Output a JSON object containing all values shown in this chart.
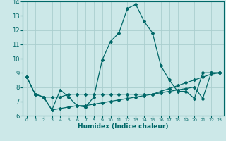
{
  "xlabel": "Humidex (Indice chaleur)",
  "xlim": [
    -0.5,
    23.5
  ],
  "ylim": [
    6,
    14
  ],
  "yticks": [
    6,
    7,
    8,
    9,
    10,
    11,
    12,
    13,
    14
  ],
  "xticks": [
    0,
    1,
    2,
    3,
    4,
    5,
    6,
    7,
    8,
    9,
    10,
    11,
    12,
    13,
    14,
    15,
    16,
    17,
    18,
    19,
    20,
    21,
    22,
    23
  ],
  "bg_color": "#cce8e8",
  "grid_color": "#aacece",
  "line_color": "#006868",
  "series": [
    [
      8.7,
      7.5,
      7.3,
      6.4,
      7.8,
      7.3,
      6.7,
      6.6,
      7.3,
      9.9,
      11.2,
      11.8,
      13.5,
      13.8,
      12.6,
      11.8,
      9.5,
      8.5,
      7.7,
      7.7,
      7.2,
      9.0,
      9.0,
      9.0
    ],
    [
      8.7,
      7.5,
      7.3,
      7.3,
      7.3,
      7.5,
      7.5,
      7.5,
      7.5,
      7.5,
      7.5,
      7.5,
      7.5,
      7.5,
      7.5,
      7.5,
      7.7,
      7.9,
      8.1,
      8.3,
      8.5,
      8.7,
      8.9,
      9.0
    ],
    [
      8.7,
      7.5,
      7.3,
      6.4,
      6.5,
      6.6,
      6.7,
      6.7,
      6.8,
      6.9,
      7.0,
      7.1,
      7.2,
      7.3,
      7.4,
      7.5,
      7.6,
      7.7,
      7.8,
      7.9,
      8.0,
      7.2,
      9.0,
      9.0
    ]
  ]
}
